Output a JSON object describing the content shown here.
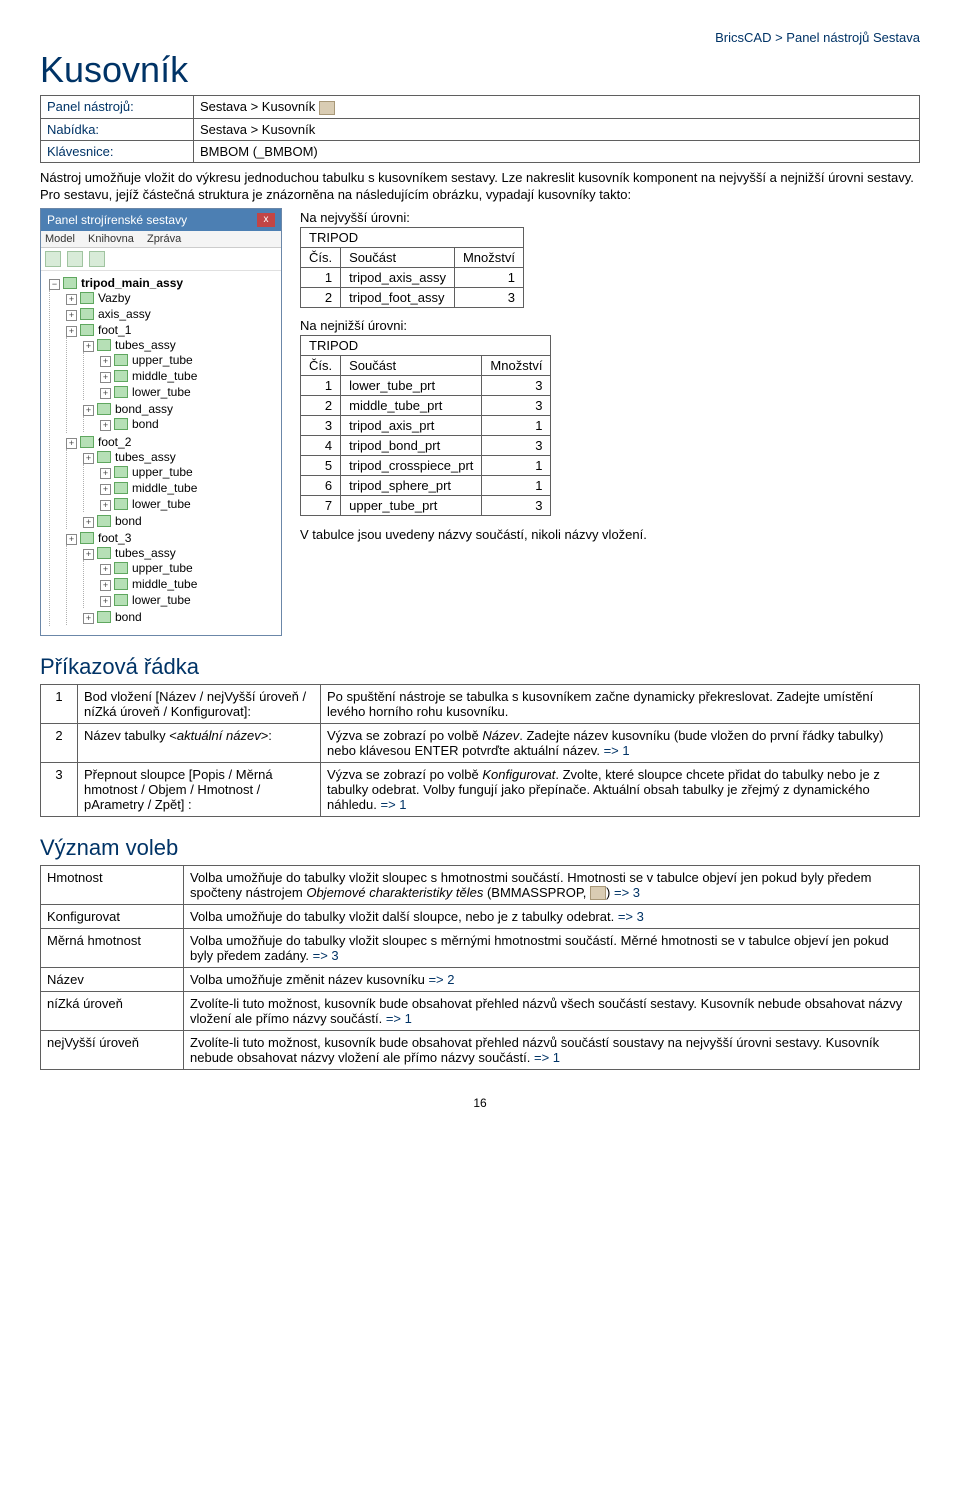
{
  "breadcrumb": "BricsCAD > Panel nástrojů Sestava",
  "title": "Kusovník",
  "meta": {
    "panel_label": "Panel nástrojů:",
    "panel_value": "Sestava > Kusovník",
    "menu_label": "Nabídka:",
    "menu_value": "Sestava > Kusovník",
    "keyboard_label": "Klávesnice:",
    "keyboard_value": "BMBOM (_BMBOM)"
  },
  "intro": "Nástroj umožňuje vložit do výkresu jednoduchou tabulku s kusovníkem sestavy. Lze nakreslit kusovník komponent na nejvyšší a nejnižší úrovni sestavy. Pro sestavu, jejíž částečná struktura je znázorněna na následujícím obrázku, vypadají kusovníky takto:",
  "tree": {
    "header": "Panel strojírenské sestavy",
    "tab1": "Model",
    "tab2": "Knihovna",
    "tab3": "Zpráva",
    "root": "tripod_main_assy",
    "items": [
      "Vazby",
      "axis_assy",
      "foot_1",
      "  tubes_assy",
      "    upper_tube",
      "    middle_tube",
      "    lower_tube",
      "  bond_assy",
      "    bond",
      "foot_2",
      "  tubes_assy",
      "    upper_tube",
      "    middle_tube",
      "    lower_tube",
      "  bond",
      "foot_3",
      "  tubes_assy",
      "    upper_tube",
      "    middle_tube",
      "    lower_tube",
      "  bond"
    ]
  },
  "top_caption": "Na nejvyšší úrovni:",
  "top_table": {
    "title": "TRIPOD",
    "h1": "Čís.",
    "h2": "Součást",
    "h3": "Množství",
    "rows": [
      {
        "n": "1",
        "p": "tripod_axis_assy",
        "q": "1"
      },
      {
        "n": "2",
        "p": "tripod_foot_assy",
        "q": "3"
      }
    ]
  },
  "bot_caption": "Na nejnižší úrovni:",
  "bot_table": {
    "title": "TRIPOD",
    "h1": "Čís.",
    "h2": "Součást",
    "h3": "Množství",
    "rows": [
      {
        "n": "1",
        "p": "lower_tube_prt",
        "q": "3"
      },
      {
        "n": "2",
        "p": "middle_tube_prt",
        "q": "3"
      },
      {
        "n": "3",
        "p": "tripod_axis_prt",
        "q": "1"
      },
      {
        "n": "4",
        "p": "tripod_bond_prt",
        "q": "3"
      },
      {
        "n": "5",
        "p": "tripod_crosspiece_prt",
        "q": "1"
      },
      {
        "n": "6",
        "p": "tripod_sphere_prt",
        "q": "1"
      },
      {
        "n": "7",
        "p": "upper_tube_prt",
        "q": "3"
      }
    ]
  },
  "table_note": "V tabulce jsou uvedeny názvy součástí, nikoli názvy vložení.",
  "cmd_title": "Příkazová řádka",
  "cmd": [
    {
      "n": "1",
      "l": "Bod vložení [Název / nejVyšší úroveň / níZká úroveň / Konfigurovat]:",
      "r": "Po spuštění nástroje se tabulka s kusovníkem začne dynamicky překreslovat. Zadejte umístění levého horního rohu kusovníku."
    },
    {
      "n": "2",
      "l_pre": "Název tabulky <",
      "l_it": "aktuální název",
      "l_post": ">:",
      "r_pre": "Výzva se zobrazí po volbě ",
      "r_it": "Název",
      "r_post": ". Zadejte název kusovníku (bude vložen do první řádky tabulky) nebo klávesou ENTER potvrďte aktuální název. ",
      "r_link": "=> 1"
    },
    {
      "n": "3",
      "l": "Přepnout sloupce [Popis / Měrná hmotnost / Objem / Hmotnost / pArametry / Zpět] <Zpět>:",
      "r_pre": "Výzva se zobrazí po volbě ",
      "r_it": "Konfigurovat",
      "r_post": ". Zvolte, které sloupce chcete přidat do tabulky nebo je z tabulky odebrat. Volby fungují jako přepínače. Aktuální obsah tabulky je zřejmý z dynamického náhledu. ",
      "r_link": "=> 1"
    }
  ],
  "meaning_title": "Význam voleb",
  "meaning": [
    {
      "k": "Hmotnost",
      "v_pre": "Volba umožňuje do tabulky vložit sloupec s hmotnostmi součástí. Hmotnosti se v tabulce objeví jen pokud byly předem spočteny nástrojem ",
      "v_it": "Objemové charakteristiky těles",
      "v_post": " (BMMASSPROP, ",
      "v_icon": true,
      "v_close": ") ",
      "v_link": "=> 3"
    },
    {
      "k": "Konfigurovat",
      "v": "Volba umožňuje do tabulky vložit další sloupce, nebo je z tabulky odebrat. ",
      "v_link": "=> 3"
    },
    {
      "k": "Měrná hmotnost",
      "v": "Volba umožňuje do tabulky vložit sloupec s měrnými hmotnostmi součástí. Měrné hmotnosti se v tabulce objeví jen pokud byly předem zadány. ",
      "v_link": "=> 3"
    },
    {
      "k": "Název",
      "v": "Volba umožňuje změnit název kusovníku ",
      "v_link": "=> 2"
    },
    {
      "k": "níZká úroveň",
      "v": "Zvolíte-li tuto možnost, kusovník bude obsahovat přehled názvů všech součástí sestavy. Kusovník nebude obsahovat názvy vložení ale přímo názvy součástí. ",
      "v_link": "=> 1"
    },
    {
      "k": "nejVyšší úroveň",
      "v": "Zvolíte-li tuto možnost, kusovník bude obsahovat přehled názvů součástí soustavy na nejvyšší úrovni sestavy. Kusovník nebude obsahovat názvy vložení ale přímo názvy součástí. ",
      "v_link": "=> 1"
    }
  ],
  "pagenum": "16"
}
